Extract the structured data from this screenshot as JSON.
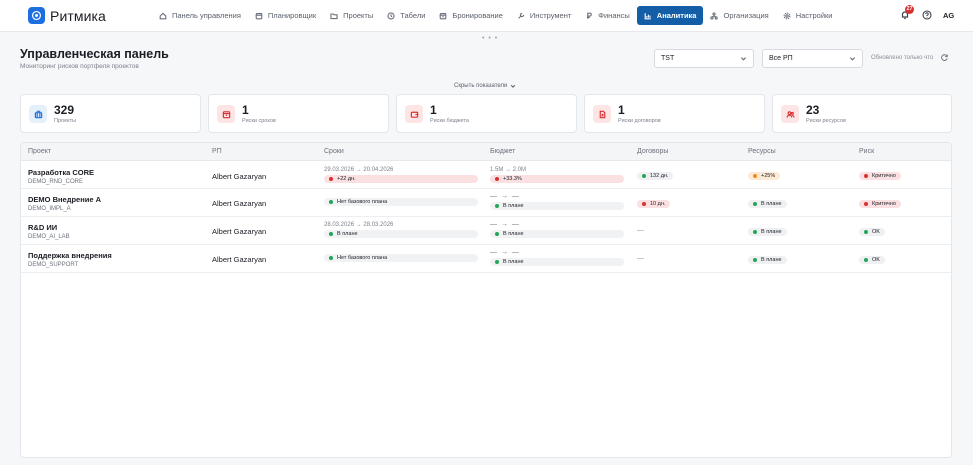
{
  "app": {
    "name": "Ритмика",
    "brand_color": "#1d6fe0"
  },
  "nav": [
    {
      "label": "Панель управления",
      "icon": "home-icon",
      "active": false
    },
    {
      "label": "Планировщик",
      "icon": "calendar-icon",
      "active": false
    },
    {
      "label": "Проекты",
      "icon": "folder-icon",
      "active": false
    },
    {
      "label": "Табели",
      "icon": "clock-icon",
      "active": false
    },
    {
      "label": "Бронирование",
      "icon": "booking-icon",
      "active": false
    },
    {
      "label": "Инструмент",
      "icon": "wrench-icon",
      "active": false
    },
    {
      "label": "Финансы",
      "icon": "ruble-icon",
      "active": false
    },
    {
      "label": "Аналитика",
      "icon": "chart-icon",
      "active": true
    },
    {
      "label": "Организация",
      "icon": "org-icon",
      "active": false
    },
    {
      "label": "Настройки",
      "icon": "gear-icon",
      "active": false
    }
  ],
  "top_right": {
    "notifications_count": "27",
    "avatar_initials": "AG"
  },
  "header": {
    "title": "Управленческая панель",
    "subtitle": "Мониторинг рисков портфеля проектов",
    "portfolio_select": "TST",
    "pm_select": "Все РП",
    "updated_text": "Обновлено только что",
    "toggle_kpi_label": "Скрыть показатели"
  },
  "kpis": [
    {
      "value": "329",
      "label": "Проекты",
      "icon": "building-icon",
      "accent": "#1d6fe0",
      "bg": "#e6f0fb"
    },
    {
      "value": "1",
      "label": "Риски сроков",
      "icon": "calendar-alert-icon",
      "accent": "#d93030",
      "bg": "#fde5e6"
    },
    {
      "value": "1",
      "label": "Риски бюджета",
      "icon": "wallet-icon",
      "accent": "#d93030",
      "bg": "#fde5e6"
    },
    {
      "value": "1",
      "label": "Риски договоров",
      "icon": "document-icon",
      "accent": "#d93030",
      "bg": "#fde5e6"
    },
    {
      "value": "23",
      "label": "Риски ресурсов",
      "icon": "users-icon",
      "accent": "#d93030",
      "bg": "#fde5e6"
    }
  ],
  "table": {
    "columns": [
      "Проект",
      "РП",
      "Сроки",
      "Бюджет",
      "Договоры",
      "Ресурсы",
      "Риск"
    ],
    "rows": [
      {
        "name": "Разработка CORE",
        "code": "DEMO_RND_CORE",
        "pm": "Albert Gazaryan",
        "schedule_range": "29.03.2026 → 20.04.2026",
        "schedule_status": "+22 дн.",
        "schedule_tone": "red",
        "budget_range": "1.5M → 2.0M",
        "budget_status": "+33.3%",
        "budget_tone": "red",
        "contracts": "132 дн.",
        "contracts_tone": "green",
        "resources": "+25%",
        "resources_tone": "orange",
        "risk": "Критично",
        "risk_tone": "red"
      },
      {
        "name": "DEMO Внедрение A",
        "code": "DEMO_IMPL_A",
        "pm": "Albert Gazaryan",
        "schedule_range": "",
        "schedule_status": "Нет базового плана",
        "schedule_tone": "green",
        "budget_range": "— → —",
        "budget_status": "В плане",
        "budget_tone": "green",
        "contracts": "10 дн.",
        "contracts_tone": "red",
        "resources": "В плане",
        "resources_tone": "green",
        "risk": "Критично",
        "risk_tone": "red"
      },
      {
        "name": "R&D ИИ",
        "code": "DEMO_AI_LAB",
        "pm": "Albert Gazaryan",
        "schedule_range": "28.03.2026 → 28.03.2026",
        "schedule_status": "В плане",
        "schedule_tone": "green",
        "budget_range": "— → —",
        "budget_status": "В плане",
        "budget_tone": "green",
        "contracts": "—",
        "contracts_tone": "none",
        "resources": "В плане",
        "resources_tone": "green",
        "risk": "OK",
        "risk_tone": "green"
      },
      {
        "name": "Поддержка внедрения",
        "code": "DEMO_SUPPORT",
        "pm": "Albert Gazaryan",
        "schedule_range": "",
        "schedule_status": "Нет базового плана",
        "schedule_tone": "green",
        "budget_range": "— → —",
        "budget_status": "В плане",
        "budget_tone": "green",
        "contracts": "—",
        "contracts_tone": "none",
        "resources": "В плане",
        "resources_tone": "green",
        "risk": "OK",
        "risk_tone": "green"
      }
    ]
  }
}
